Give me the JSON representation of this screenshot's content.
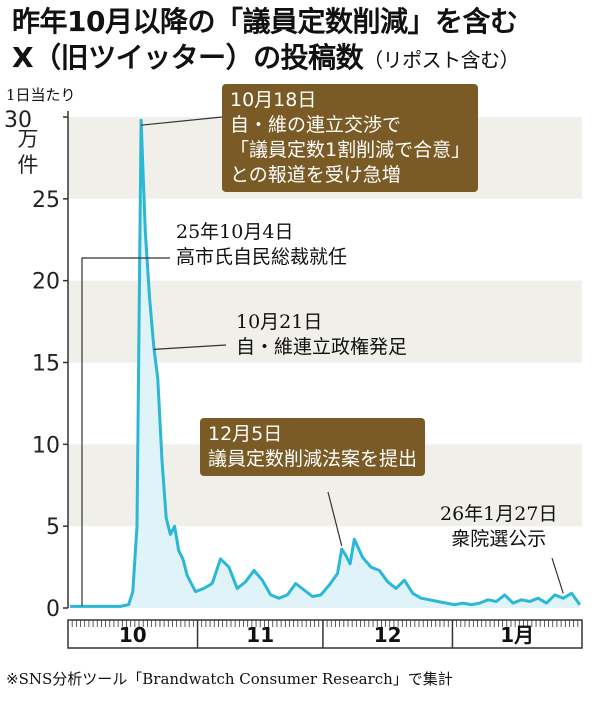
{
  "header": {
    "title_line1": "昨年10月以降の「議員定数削減」を含む",
    "title_line2_main": "X（旧ツイッター）の投稿数",
    "title_line2_sub": "（リポスト含む）"
  },
  "unit_label": "1日当たり",
  "unit_top": "30",
  "unit_rest": "万件",
  "source_note": "※SNS分析ツール「Brandwatch Consumer Research」で集計",
  "annotations": [
    {
      "id": "oct18",
      "date": "10月18日",
      "lines": [
        "自・維の連立交渉で",
        "「議員定数1割削減で合意」",
        "との報道を受け急増"
      ]
    },
    {
      "id": "oct4",
      "date": "25年10月4日",
      "lines": [
        "高市氏自民総裁就任"
      ]
    },
    {
      "id": "oct21",
      "date": "10月21日",
      "lines": [
        "自・維連立政権発足"
      ]
    },
    {
      "id": "dec5",
      "date": "12月5日",
      "lines": [
        "議員定数削減法案を提出"
      ]
    },
    {
      "id": "jan27",
      "date": "26年1月27日",
      "lines": [
        "衆院選公示"
      ]
    }
  ],
  "colors": {
    "line": "#2ab8d6",
    "fill": "#dff3f8",
    "band": "#f1efe9",
    "box": "#7a5a25"
  },
  "chart_data": {
    "type": "area",
    "title": "昨年10月以降の「議員定数削減」を含むX（旧ツイッター）の投稿数（リポスト含む）",
    "ylabel": "1日当たり（万件）",
    "xlabel": "",
    "ylim": [
      0,
      30
    ],
    "yticks": [
      0,
      5,
      10,
      15,
      20,
      25,
      30
    ],
    "grid": "alternating horizontal bands",
    "x_categories": [
      "10",
      "11",
      "12",
      "1月"
    ],
    "month_days": [
      31,
      30,
      31,
      31
    ],
    "x": [
      "10/1",
      "10/3",
      "10/5",
      "10/7",
      "10/9",
      "10/11",
      "10/13",
      "10/15",
      "10/16",
      "10/17",
      "10/18",
      "10/19",
      "10/20",
      "10/21",
      "10/22",
      "10/23",
      "10/24",
      "10/25",
      "10/26",
      "10/27",
      "10/28",
      "10/29",
      "10/30",
      "10/31",
      "11/2",
      "11/4",
      "11/6",
      "11/8",
      "11/10",
      "11/12",
      "11/14",
      "11/16",
      "11/18",
      "11/20",
      "11/22",
      "11/24",
      "11/26",
      "11/28",
      "11/30",
      "12/2",
      "12/4",
      "12/5",
      "12/6",
      "12/7",
      "12/8",
      "12/10",
      "12/12",
      "12/14",
      "12/16",
      "12/18",
      "12/20",
      "12/22",
      "12/24",
      "12/26",
      "12/28",
      "12/30",
      "1/1",
      "1/3",
      "1/5",
      "1/7",
      "1/9",
      "1/11",
      "1/13",
      "1/15",
      "1/17",
      "1/19",
      "1/21",
      "1/23",
      "1/25",
      "1/27",
      "1/29",
      "1/31"
    ],
    "values": [
      0.1,
      0.1,
      0.1,
      0.1,
      0.1,
      0.1,
      0.1,
      0.2,
      1.0,
      5.0,
      29.8,
      23.0,
      19.0,
      16.0,
      14.0,
      9.0,
      5.5,
      4.5,
      5.0,
      3.5,
      3.0,
      2.0,
      1.5,
      1.0,
      1.2,
      1.5,
      3.0,
      2.5,
      1.2,
      1.6,
      2.3,
      1.7,
      0.8,
      0.6,
      0.8,
      1.5,
      1.1,
      0.7,
      0.8,
      1.4,
      2.1,
      3.6,
      3.2,
      2.7,
      4.2,
      3.1,
      2.5,
      2.3,
      1.6,
      1.2,
      1.7,
      0.9,
      0.6,
      0.5,
      0.4,
      0.3,
      0.2,
      0.3,
      0.2,
      0.3,
      0.5,
      0.4,
      0.8,
      0.3,
      0.5,
      0.4,
      0.6,
      0.3,
      0.8,
      0.6,
      0.9,
      0.2
    ]
  }
}
